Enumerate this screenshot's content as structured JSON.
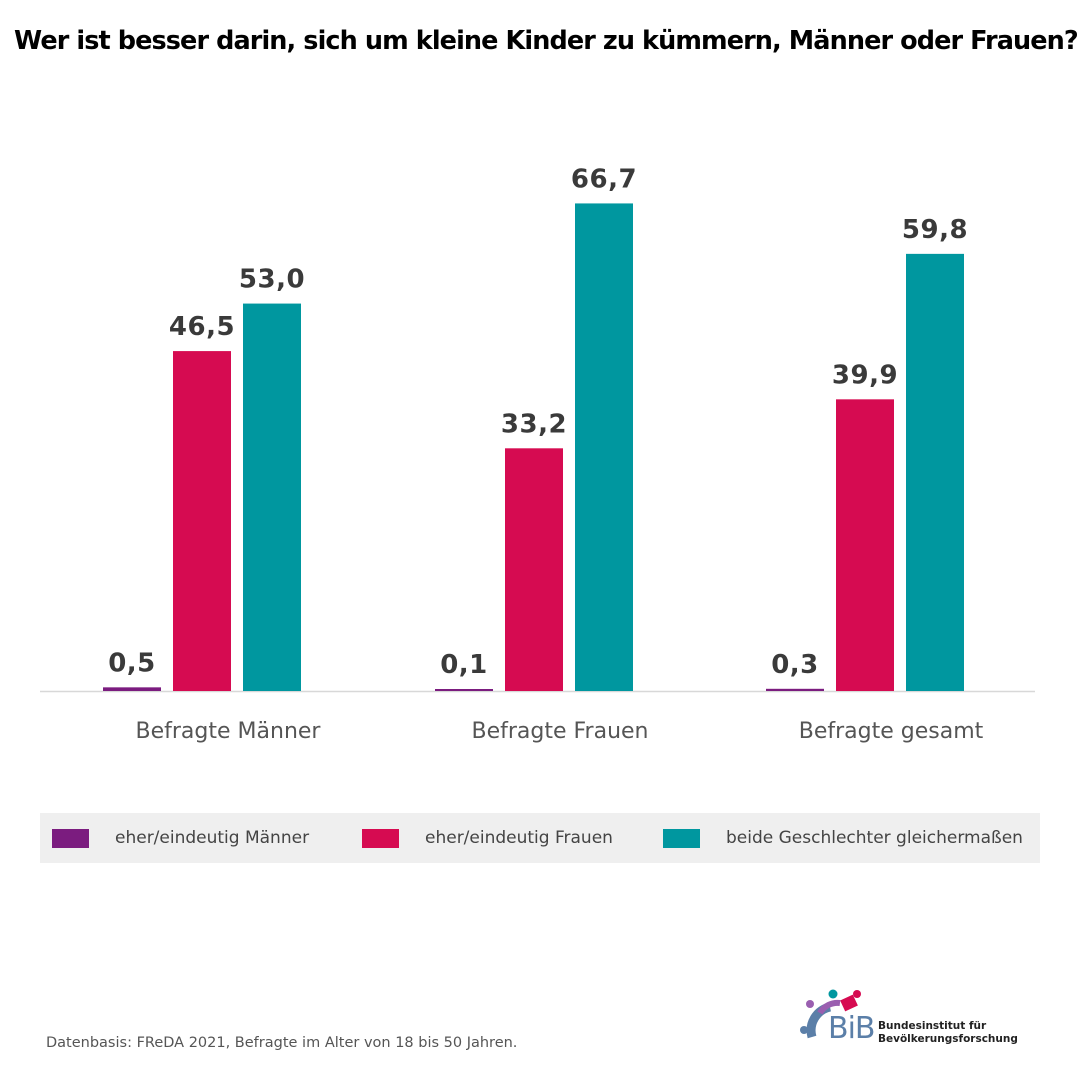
{
  "chart_data": {
    "type": "bar",
    "title": "Wer ist besser darin, sich um kleine Kinder zu kümmern, Männer oder Frauen?",
    "categories": [
      "Befragte Männer",
      "Befragte Frauen",
      "Befragte gesamt"
    ],
    "series": [
      {
        "name": "eher/eindeutig Männer",
        "color": "#7b1c7f",
        "values": [
          0.5,
          0.1,
          0.3
        ],
        "labels": [
          "0,5",
          "0,1",
          "0,3"
        ]
      },
      {
        "name": "eher/eindeutig Frauen",
        "color": "#d60b51",
        "values": [
          46.5,
          33.2,
          39.9
        ],
        "labels": [
          "46,5",
          "33,2",
          "39,9"
        ]
      },
      {
        "name": "beide Geschlechter gleichermaßen",
        "color": "#00979f",
        "values": [
          53.0,
          66.7,
          59.8
        ],
        "labels": [
          "53,0",
          "66,7",
          "59,8"
        ]
      }
    ],
    "ylim": [
      0,
      100
    ],
    "grid": false,
    "legend_position": "bottom"
  },
  "footnote": "Datenbasis: FReDA 2021, Befragte im Alter von 18 bis 50 Jahren.",
  "logo": {
    "abbreviation": "BiB",
    "name_line1": "Bundesinstitut für",
    "name_line2": "Bevölkerungsforschung"
  }
}
